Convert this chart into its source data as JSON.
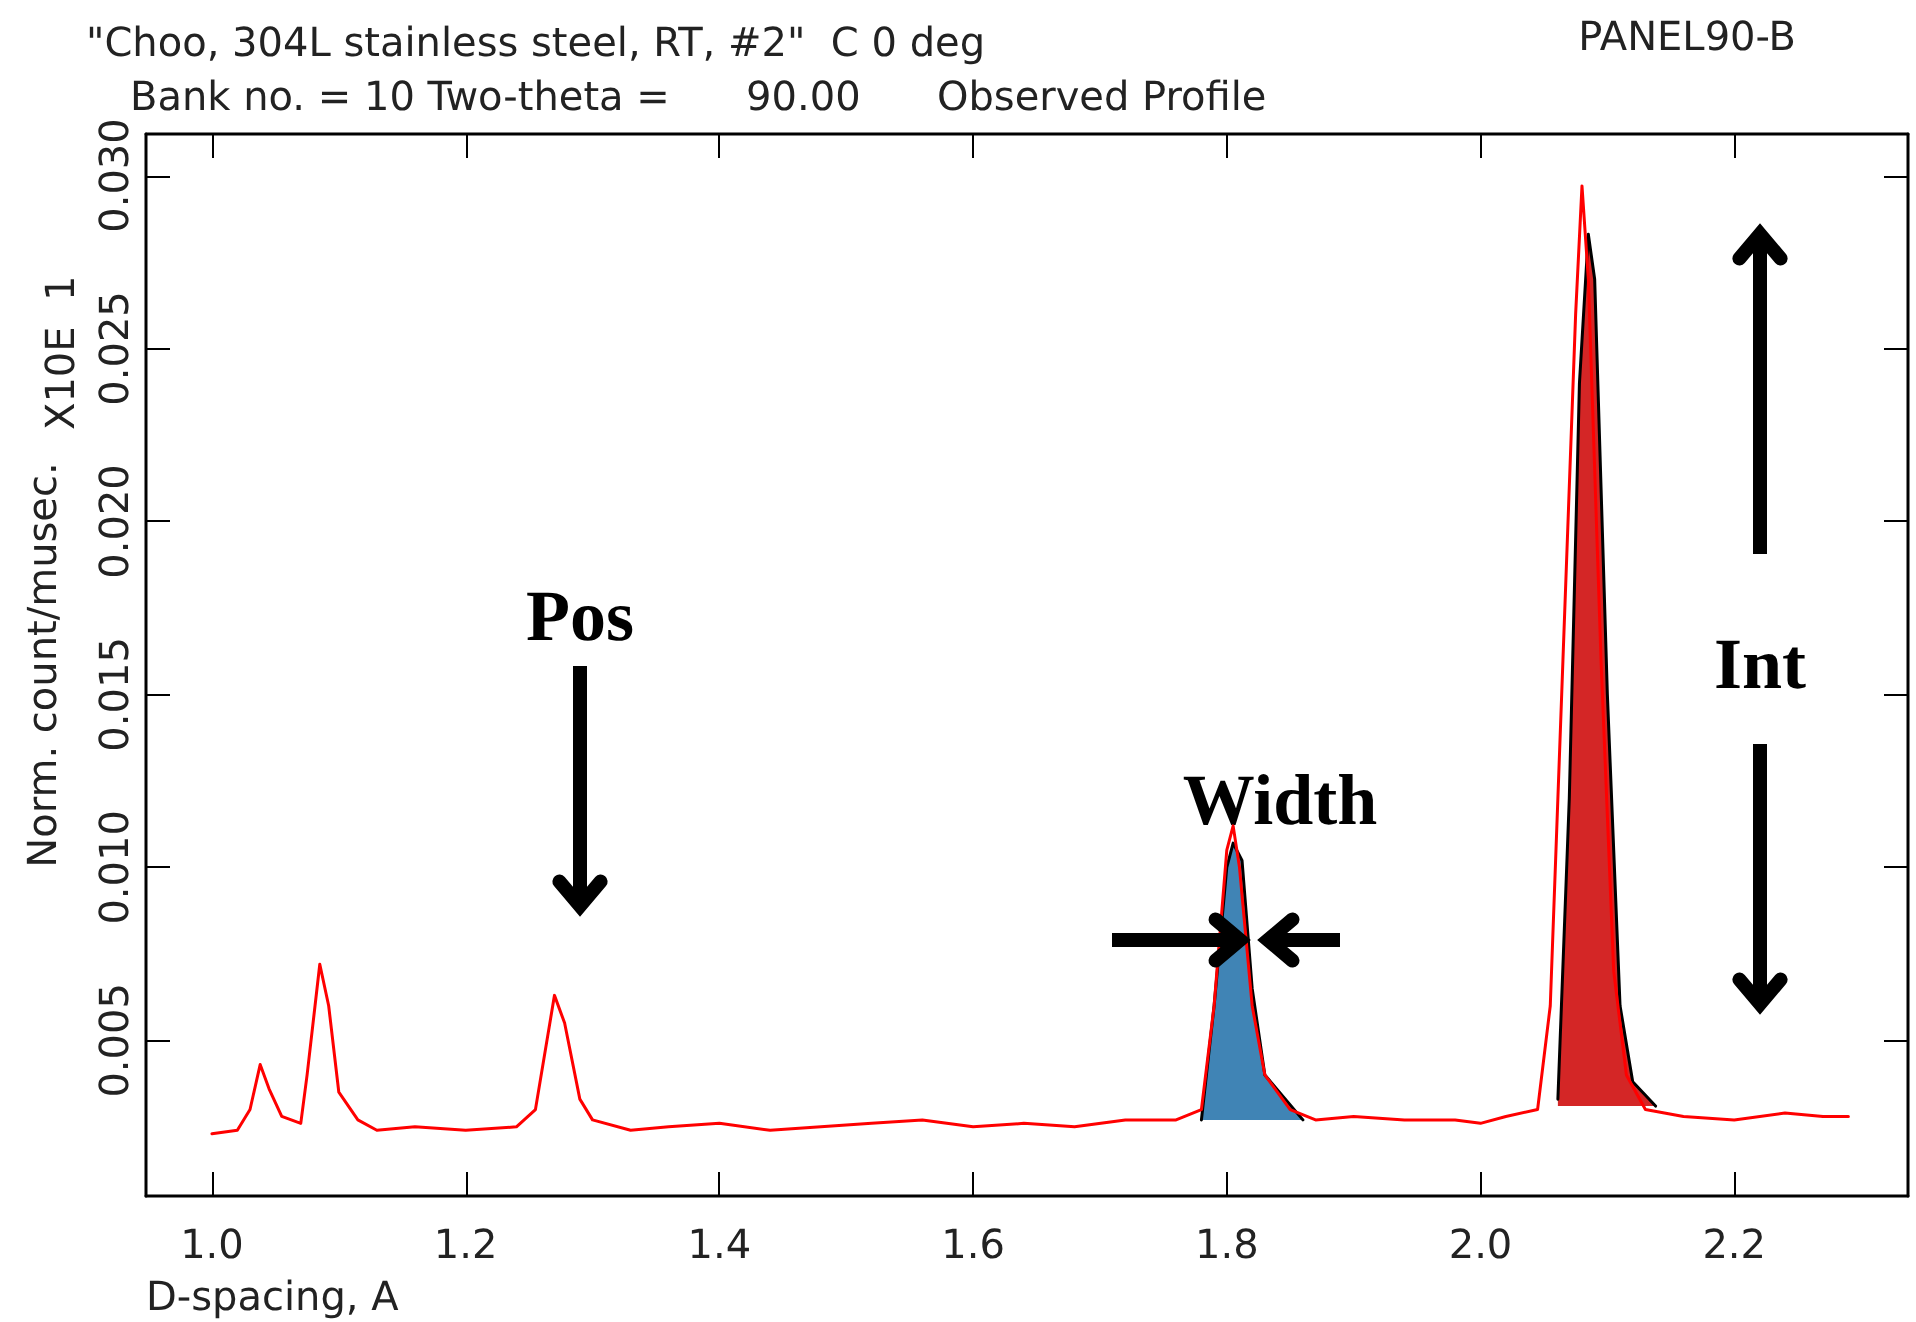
{
  "chart_data": {
    "type": "line",
    "title": "\"Choo, 304L stainless steel, RT, #2\"  C 0 deg",
    "subtitle": "Bank no. = 10 Two-theta =      90.00      Observed Profile",
    "xlabel": "D-spacing, A",
    "ylabel": "Norm. count/musec.",
    "annotations": [
      "PANEL90-B",
      "X10E  1",
      "Pos",
      "Width",
      "Int"
    ],
    "xlim": [
      0.948,
      2.337
    ],
    "xticks": [
      {
        "value": 1,
        "label": "1.0"
      },
      1.2,
      1.4,
      1.6,
      1.8,
      {
        "value": 2,
        "label": "2.0"
      },
      2.2
    ],
    "ylim": [
      0.0005,
      0.0312
    ],
    "yticks": [
      0.005,
      {
        "value": 0.01,
        "label": "0.010"
      },
      0.015,
      {
        "value": 0.02,
        "label": "0.020"
      },
      0.025,
      {
        "value": 0.03,
        "label": "0.030"
      }
    ],
    "grid": false,
    "marker": "none",
    "line_style": "solid",
    "series": [
      {
        "color": "#ff0000",
        "x": [
          1.0,
          1.02,
          1.03,
          1.038,
          1.045,
          1.055,
          1.07,
          1.075,
          1.085,
          1.092,
          1.1,
          1.115,
          1.13,
          1.16,
          1.2,
          1.24,
          1.255,
          1.27,
          1.278,
          1.29,
          1.3,
          1.33,
          1.36,
          1.4,
          1.44,
          1.48,
          1.52,
          1.56,
          1.6,
          1.64,
          1.68,
          1.72,
          1.76,
          1.78,
          1.79,
          1.8,
          1.805,
          1.81,
          1.82,
          1.83,
          1.85,
          1.87,
          1.9,
          1.94,
          1.98,
          2.0,
          2.02,
          2.045,
          2.055,
          2.065,
          2.075,
          2.08,
          2.085,
          2.095,
          2.105,
          2.115,
          2.13,
          2.16,
          2.2,
          2.24,
          2.27,
          2.29
        ],
        "values": [
          0.0023,
          0.0024,
          0.003,
          0.0043,
          0.0036,
          0.0028,
          0.0026,
          0.004,
          0.0072,
          0.006,
          0.0035,
          0.0027,
          0.0024,
          0.0025,
          0.0024,
          0.0025,
          0.003,
          0.0063,
          0.0055,
          0.0033,
          0.0027,
          0.0024,
          0.0025,
          0.0026,
          0.0024,
          0.0025,
          0.0026,
          0.0027,
          0.0025,
          0.0026,
          0.0025,
          0.0027,
          0.0027,
          0.003,
          0.006,
          0.0105,
          0.0112,
          0.01,
          0.006,
          0.004,
          0.003,
          0.0027,
          0.0028,
          0.0027,
          0.0027,
          0.0026,
          0.0028,
          0.003,
          0.006,
          0.016,
          0.026,
          0.0297,
          0.027,
          0.016,
          0.007,
          0.004,
          0.003,
          0.0028,
          0.0027,
          0.0029,
          0.0028,
          0.0028
        ]
      },
      {
        "type": "area",
        "color": "#1f6fa8",
        "x": [
          1.78,
          1.79,
          1.8,
          1.805,
          1.812,
          1.82,
          1.83,
          1.86
        ],
        "values": [
          0.0027,
          0.006,
          0.01,
          0.0107,
          0.0102,
          0.0065,
          0.004,
          0.0027
        ]
      },
      {
        "type": "area",
        "color": "#cc0000",
        "x": [
          2.061,
          2.07,
          2.078,
          2.085,
          2.09,
          2.1,
          2.11,
          2.12,
          2.138
        ],
        "values": [
          0.0033,
          0.012,
          0.024,
          0.0283,
          0.027,
          0.015,
          0.006,
          0.0038,
          0.0031
        ]
      }
    ]
  }
}
